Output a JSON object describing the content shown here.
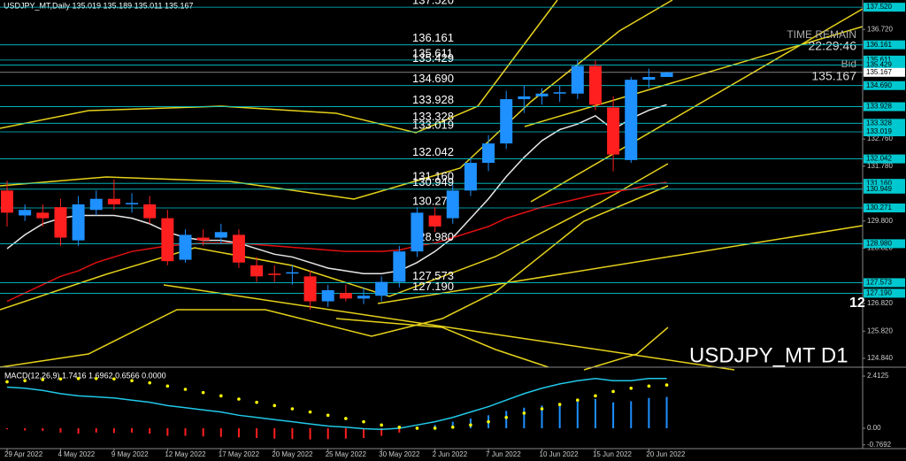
{
  "chart_data": {
    "type": "candlestick",
    "title": "USDJPY_MT,Daily  135.019 135.189 135.011 135.167",
    "symbol_label": "USDJPY_MT D1",
    "side_label": "12",
    "timer": {
      "caption": "TIME REMAIN",
      "time": "22:29:46",
      "bid_caption": "Bid",
      "bid": "135.167"
    },
    "categories": [
      "29 Apr 2022",
      null,
      null,
      "4 May 2022",
      null,
      null,
      "9 May 2022",
      null,
      null,
      "12 May 2022",
      null,
      null,
      "17 May 2022",
      null,
      null,
      "20 May 2022",
      null,
      null,
      "25 May 2022",
      null,
      null,
      "30 May 2022",
      null,
      null,
      "2 Jun 2022",
      null,
      null,
      "7 Jun 2022",
      null,
      null,
      "10 Jun 2022",
      null,
      null,
      "15 Jun 2022",
      null,
      null,
      "20 Jun 2022",
      null
    ],
    "open": [
      130.9,
      130.0,
      130.1,
      130.3,
      129.1,
      130.2,
      130.6,
      130.4,
      130.4,
      129.9,
      128.4,
      129.2,
      129.2,
      129.3,
      128.2,
      127.9,
      127.9,
      127.8,
      126.9,
      127.2,
      127.0,
      127.1,
      127.6,
      128.7,
      130.0,
      129.9,
      130.9,
      131.9,
      132.6,
      134.2,
      134.3,
      134.4,
      134.4,
      135.4,
      133.9,
      132.0,
      134.9,
      135.0
    ],
    "high": [
      131.25,
      130.4,
      130.4,
      130.6,
      130.7,
      130.9,
      131.3,
      130.8,
      130.7,
      130.2,
      129.5,
      129.5,
      129.7,
      129.5,
      128.5,
      128.2,
      128.2,
      128.0,
      127.5,
      127.5,
      127.4,
      127.8,
      128.9,
      130.3,
      130.3,
      131.1,
      132.1,
      132.9,
      134.5,
      134.7,
      134.6,
      134.7,
      135.6,
      135.6,
      134.3,
      135.0,
      135.3,
      135.19
    ],
    "low": [
      129.6,
      129.8,
      129.6,
      128.9,
      128.9,
      130.0,
      130.2,
      130.1,
      129.7,
      128.2,
      128.3,
      128.9,
      129.0,
      128.1,
      127.6,
      127.6,
      127.5,
      126.6,
      126.7,
      126.9,
      126.8,
      126.9,
      127.4,
      128.5,
      129.4,
      129.7,
      130.7,
      131.6,
      132.4,
      133.7,
      134.0,
      134.1,
      134.2,
      133.8,
      131.6,
      131.9,
      134.6,
      135.01
    ],
    "close": [
      130.1,
      130.2,
      129.9,
      129.2,
      130.4,
      130.6,
      130.4,
      130.45,
      129.9,
      128.35,
      129.3,
      129.1,
      129.4,
      128.3,
      127.8,
      127.85,
      127.95,
      126.9,
      127.3,
      127.0,
      127.1,
      127.6,
      128.7,
      130.1,
      129.6,
      130.9,
      131.9,
      132.6,
      134.2,
      134.3,
      134.4,
      134.45,
      135.4,
      134.0,
      132.2,
      134.9,
      135.0,
      135.167
    ],
    "up_color": "#1e90ff",
    "down_color": "#ff1f1f",
    "lines": [
      {
        "color": "#e8e8e8",
        "values": [
          128.8,
          129.3,
          129.7,
          129.9,
          130.0,
          130.0,
          130.0,
          129.9,
          129.7,
          129.4,
          129.2,
          129.1,
          129.1,
          129.0,
          128.8,
          128.6,
          128.5,
          128.3,
          128.1,
          128.0,
          127.9,
          127.9,
          128.0,
          128.3,
          128.7,
          129.2,
          129.9,
          130.6,
          131.4,
          132.1,
          132.7,
          133.1,
          133.3,
          133.6,
          133.1,
          133.5,
          133.8,
          134.0
        ]
      },
      {
        "color": "#e01010",
        "values": [
          126.9,
          127.2,
          127.5,
          127.8,
          128.0,
          128.3,
          128.5,
          128.7,
          128.8,
          128.9,
          128.95,
          129.0,
          129.0,
          129.0,
          128.95,
          128.9,
          128.85,
          128.8,
          128.75,
          128.7,
          128.7,
          128.7,
          128.75,
          128.9,
          129.0,
          129.2,
          129.4,
          129.6,
          129.9,
          130.1,
          130.3,
          130.45,
          130.6,
          130.75,
          130.85,
          130.95,
          131.1,
          131.2
        ]
      }
    ],
    "levels": [
      {
        "value": 137.52,
        "label": "137.520"
      },
      {
        "value": 136.161,
        "label": "136.161"
      },
      {
        "value": 135.611,
        "label": "135.611"
      },
      {
        "value": 135.429,
        "label": "135.429"
      },
      {
        "value": 134.69,
        "label": "134.690"
      },
      {
        "value": 133.928,
        "label": "133.928"
      },
      {
        "value": 133.328,
        "label": "133.328"
      },
      {
        "value": 133.019,
        "label": "133.019"
      },
      {
        "value": 132.042,
        "label": "132.042"
      },
      {
        "value": 131.16,
        "label": "131.160"
      },
      {
        "value": 130.949,
        "label": "130.949"
      },
      {
        "value": 130.271,
        "label": "130.271"
      },
      {
        "value": 128.98,
        "label": "128.980"
      },
      {
        "value": 127.573,
        "label": "127.573"
      },
      {
        "value": 127.19,
        "label": "127.190"
      }
    ],
    "bid_level": {
      "value": 135.167,
      "label": "135.167"
    },
    "ylim": [
      124.52,
      137.78
    ],
    "yticks": [
      {
        "value": 136.72,
        "label": "136.720"
      },
      {
        "value": 132.76,
        "label": "132.760"
      },
      {
        "value": 131.78,
        "label": "131.780"
      },
      {
        "value": 129.8,
        "label": "129.800"
      },
      {
        "value": 128.82,
        "label": "128.820"
      },
      {
        "value": 126.82,
        "label": "126.820"
      },
      {
        "value": 125.82,
        "label": "125.820"
      },
      {
        "value": 124.84,
        "label": "124.840"
      }
    ],
    "macd": {
      "title": "MACD(12,26,9) 1.7416 1.6962 0.6566 0.0000",
      "ylim": [
        -0.86,
        2.7
      ],
      "yticks": [
        2.4125,
        {
          "value": 0,
          "label": "0.00"
        },
        -0.7692
      ],
      "histogram": [
        -0.05,
        -0.1,
        -0.12,
        -0.2,
        -0.25,
        -0.2,
        -0.22,
        -0.2,
        -0.25,
        -0.35,
        -0.35,
        -0.38,
        -0.4,
        -0.42,
        -0.45,
        -0.48,
        -0.5,
        -0.52,
        -0.5,
        -0.48,
        -0.45,
        -0.35,
        -0.2,
        0.05,
        0.15,
        0.3,
        0.45,
        0.6,
        0.8,
        0.95,
        1.05,
        1.15,
        1.3,
        1.35,
        1.2,
        1.25,
        1.4,
        1.45
      ],
      "line": [
        1.9,
        1.85,
        1.75,
        1.6,
        1.5,
        1.45,
        1.4,
        1.3,
        1.2,
        1.05,
        0.95,
        0.85,
        0.75,
        0.6,
        0.5,
        0.4,
        0.3,
        0.2,
        0.1,
        0.05,
        -0.02,
        -0.05,
        0.0,
        0.15,
        0.3,
        0.5,
        0.75,
        1.0,
        1.3,
        1.6,
        1.85,
        2.05,
        2.2,
        2.3,
        2.2,
        2.2,
        2.3,
        2.3
      ],
      "signal": [
        2.15,
        2.2,
        2.25,
        2.28,
        2.3,
        2.3,
        2.28,
        2.2,
        2.1,
        1.95,
        1.8,
        1.65,
        1.5,
        1.35,
        1.2,
        1.05,
        0.9,
        0.75,
        0.6,
        0.45,
        0.3,
        0.15,
        0.05,
        0.0,
        0.0,
        0.05,
        0.15,
        0.3,
        0.5,
        0.7,
        0.9,
        1.1,
        1.3,
        1.5,
        1.7,
        1.85,
        1.95,
        2.0
      ],
      "line_color": "#20c8e8",
      "signal_color": "#ffff00"
    }
  }
}
